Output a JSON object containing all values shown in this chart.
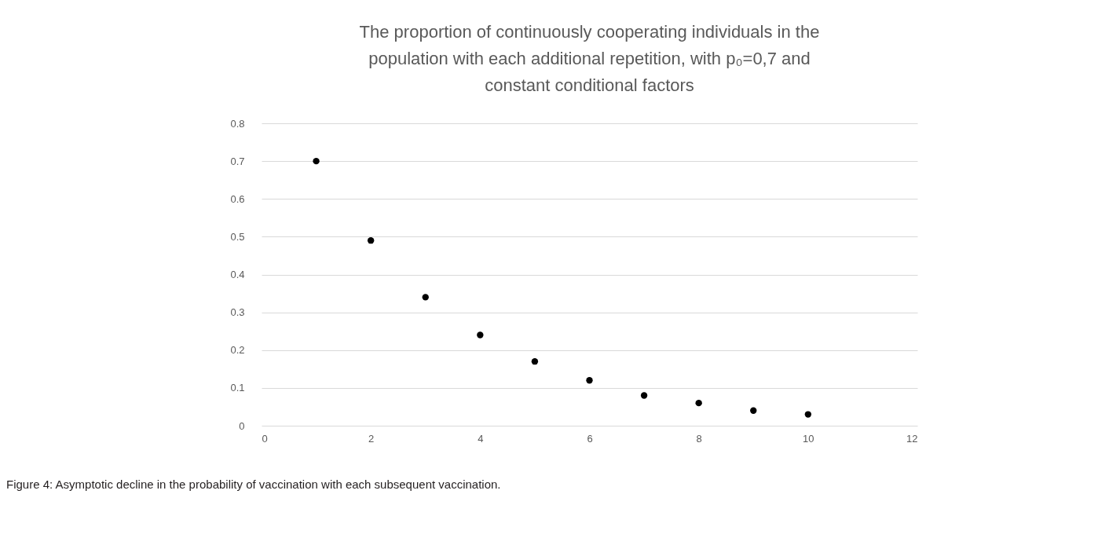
{
  "chart_data": {
    "type": "scatter",
    "title": "The proportion of continuously cooperating individuals in the population with each additional repetition, with p₀=0,7 and constant conditional factors",
    "x": [
      1,
      2,
      3,
      4,
      5,
      6,
      7,
      8,
      9,
      10
    ],
    "series": [
      {
        "color": "#000000",
        "values": [
          0.7,
          0.49,
          0.34,
          0.24,
          0.17,
          0.12,
          0.08,
          0.06,
          0.04,
          0.03
        ]
      }
    ],
    "xlim": [
      0,
      12
    ],
    "xticks": [
      0,
      2,
      4,
      6,
      8,
      10,
      12
    ],
    "ylim": [
      0,
      0.8
    ],
    "yticks": [
      0,
      0.1,
      0.2,
      0.3,
      0.4,
      0.5,
      0.6,
      0.7,
      0.8
    ],
    "grid": "y",
    "marker": "circle",
    "annotations": [
      "Figure 4: Asymptotic decline in the probability of vaccination with each subsequent vaccination."
    ]
  }
}
